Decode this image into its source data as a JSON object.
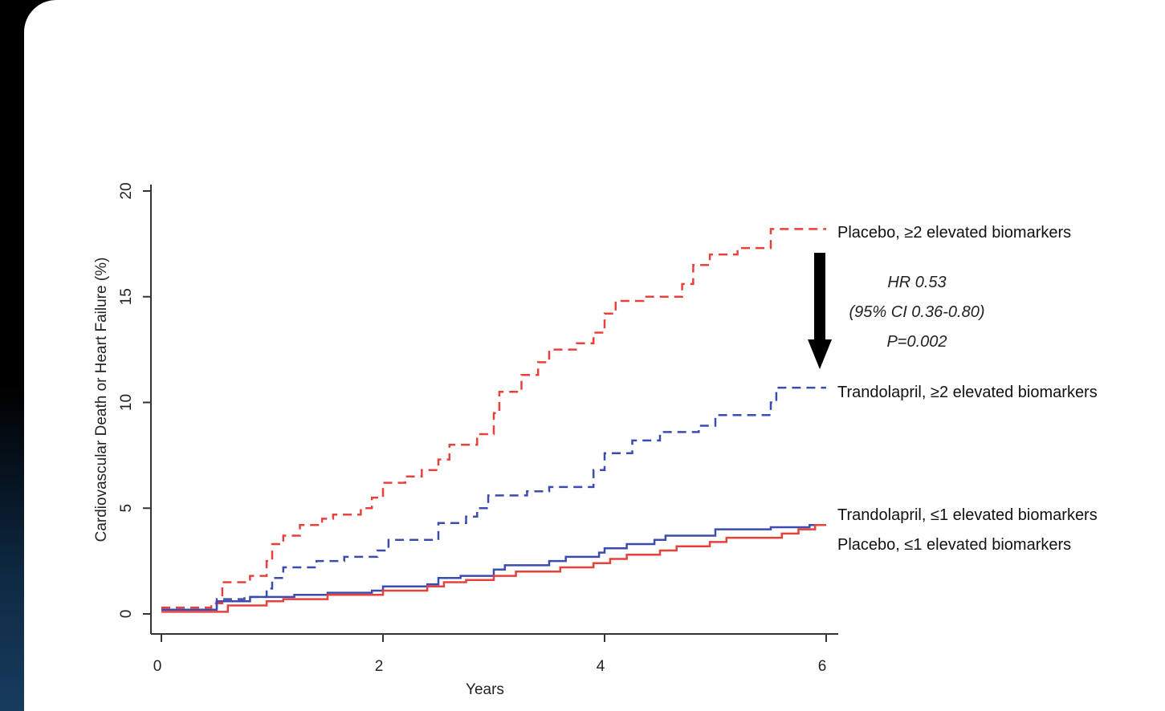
{
  "chart_data": {
    "type": "line",
    "xlabel": "Years",
    "ylabel": "Cardiovascular Death or Heart Failure (%)",
    "xlim": [
      0,
      6
    ],
    "ylim": [
      0,
      20
    ],
    "x_ticks": [
      "0",
      "2",
      "4",
      "6"
    ],
    "y_ticks": [
      "0",
      "5",
      "10",
      "15",
      "20"
    ],
    "grid": false,
    "legend_placement": "right, end of lines",
    "series": [
      {
        "name": "Placebo, ≥2 elevated biomarkers",
        "color": "#e8413c",
        "dash": "dashed",
        "points": [
          [
            0,
            0.3
          ],
          [
            0.45,
            0.3
          ],
          [
            0.45,
            0.5
          ],
          [
            0.55,
            0.5
          ],
          [
            0.55,
            1.5
          ],
          [
            0.8,
            1.5
          ],
          [
            0.8,
            1.8
          ],
          [
            0.95,
            1.8
          ],
          [
            0.95,
            2.5
          ],
          [
            1.0,
            2.5
          ],
          [
            1.0,
            3.3
          ],
          [
            1.1,
            3.3
          ],
          [
            1.1,
            3.7
          ],
          [
            1.25,
            3.7
          ],
          [
            1.25,
            4.2
          ],
          [
            1.45,
            4.2
          ],
          [
            1.45,
            4.5
          ],
          [
            1.55,
            4.5
          ],
          [
            1.55,
            4.7
          ],
          [
            1.8,
            4.7
          ],
          [
            1.8,
            5.0
          ],
          [
            1.9,
            5.0
          ],
          [
            1.9,
            5.5
          ],
          [
            2.0,
            5.5
          ],
          [
            2.0,
            6.2
          ],
          [
            2.2,
            6.2
          ],
          [
            2.2,
            6.5
          ],
          [
            2.35,
            6.5
          ],
          [
            2.35,
            6.8
          ],
          [
            2.5,
            6.8
          ],
          [
            2.5,
            7.3
          ],
          [
            2.6,
            7.3
          ],
          [
            2.6,
            8.0
          ],
          [
            2.85,
            8.0
          ],
          [
            2.85,
            8.5
          ],
          [
            3.0,
            8.5
          ],
          [
            3.0,
            9.5
          ],
          [
            3.05,
            9.5
          ],
          [
            3.05,
            10.5
          ],
          [
            3.25,
            10.5
          ],
          [
            3.25,
            11.3
          ],
          [
            3.4,
            11.3
          ],
          [
            3.4,
            11.9
          ],
          [
            3.5,
            11.9
          ],
          [
            3.5,
            12.5
          ],
          [
            3.75,
            12.5
          ],
          [
            3.75,
            12.8
          ],
          [
            3.9,
            12.8
          ],
          [
            3.9,
            13.3
          ],
          [
            4.0,
            13.3
          ],
          [
            4.0,
            14.2
          ],
          [
            4.1,
            14.2
          ],
          [
            4.1,
            14.8
          ],
          [
            4.35,
            14.8
          ],
          [
            4.35,
            15.0
          ],
          [
            4.7,
            15.0
          ],
          [
            4.7,
            15.6
          ],
          [
            4.8,
            15.6
          ],
          [
            4.8,
            16.5
          ],
          [
            4.95,
            16.5
          ],
          [
            4.95,
            17.0
          ],
          [
            5.2,
            17.0
          ],
          [
            5.2,
            17.3
          ],
          [
            5.5,
            17.3
          ],
          [
            5.5,
            18.2
          ],
          [
            6.0,
            18.2
          ]
        ]
      },
      {
        "name": "Trandolapril, ≥2 elevated biomarkers",
        "color": "#3c4bb0",
        "dash": "dashed",
        "points": [
          [
            0,
            0.2
          ],
          [
            0.5,
            0.2
          ],
          [
            0.5,
            0.7
          ],
          [
            0.75,
            0.7
          ],
          [
            0.75,
            0.8
          ],
          [
            0.95,
            0.8
          ],
          [
            0.95,
            1.2
          ],
          [
            1.0,
            1.2
          ],
          [
            1.0,
            1.7
          ],
          [
            1.1,
            1.7
          ],
          [
            1.1,
            2.2
          ],
          [
            1.4,
            2.2
          ],
          [
            1.4,
            2.5
          ],
          [
            1.65,
            2.5
          ],
          [
            1.65,
            2.7
          ],
          [
            1.95,
            2.7
          ],
          [
            1.95,
            3.0
          ],
          [
            2.05,
            3.0
          ],
          [
            2.05,
            3.5
          ],
          [
            2.5,
            3.5
          ],
          [
            2.5,
            4.3
          ],
          [
            2.75,
            4.3
          ],
          [
            2.75,
            4.6
          ],
          [
            2.85,
            4.6
          ],
          [
            2.85,
            5.0
          ],
          [
            2.95,
            5.0
          ],
          [
            2.95,
            5.6
          ],
          [
            3.3,
            5.6
          ],
          [
            3.3,
            5.8
          ],
          [
            3.5,
            5.8
          ],
          [
            3.5,
            6.0
          ],
          [
            3.9,
            6.0
          ],
          [
            3.9,
            6.8
          ],
          [
            4.0,
            6.8
          ],
          [
            4.0,
            7.6
          ],
          [
            4.25,
            7.6
          ],
          [
            4.25,
            8.2
          ],
          [
            4.5,
            8.2
          ],
          [
            4.5,
            8.6
          ],
          [
            4.85,
            8.6
          ],
          [
            4.85,
            8.9
          ],
          [
            5.0,
            8.9
          ],
          [
            5.0,
            9.4
          ],
          [
            5.5,
            9.4
          ],
          [
            5.5,
            10.0
          ],
          [
            5.55,
            10.0
          ],
          [
            5.55,
            10.7
          ],
          [
            6.0,
            10.7
          ]
        ]
      },
      {
        "name": "Trandolapril, ≤1 elevated biomarkers",
        "color": "#3c4bb0",
        "dash": "solid",
        "points": [
          [
            0,
            0.2
          ],
          [
            0.5,
            0.2
          ],
          [
            0.5,
            0.6
          ],
          [
            0.8,
            0.6
          ],
          [
            0.8,
            0.8
          ],
          [
            1.2,
            0.8
          ],
          [
            1.2,
            0.9
          ],
          [
            1.5,
            0.9
          ],
          [
            1.5,
            1.0
          ],
          [
            1.9,
            1.0
          ],
          [
            1.9,
            1.1
          ],
          [
            2.0,
            1.1
          ],
          [
            2.0,
            1.3
          ],
          [
            2.4,
            1.3
          ],
          [
            2.4,
            1.4
          ],
          [
            2.5,
            1.4
          ],
          [
            2.5,
            1.7
          ],
          [
            2.7,
            1.7
          ],
          [
            2.7,
            1.8
          ],
          [
            3.0,
            1.8
          ],
          [
            3.0,
            2.1
          ],
          [
            3.1,
            2.1
          ],
          [
            3.1,
            2.3
          ],
          [
            3.5,
            2.3
          ],
          [
            3.5,
            2.5
          ],
          [
            3.65,
            2.5
          ],
          [
            3.65,
            2.7
          ],
          [
            3.95,
            2.7
          ],
          [
            3.95,
            2.9
          ],
          [
            4.0,
            2.9
          ],
          [
            4.0,
            3.1
          ],
          [
            4.2,
            3.1
          ],
          [
            4.2,
            3.3
          ],
          [
            4.45,
            3.3
          ],
          [
            4.45,
            3.5
          ],
          [
            4.55,
            3.5
          ],
          [
            4.55,
            3.7
          ],
          [
            5.0,
            3.7
          ],
          [
            5.0,
            4.0
          ],
          [
            5.5,
            4.0
          ],
          [
            5.5,
            4.1
          ],
          [
            5.85,
            4.1
          ],
          [
            5.85,
            4.2
          ],
          [
            6.0,
            4.2
          ]
        ]
      },
      {
        "name": "Placebo, ≤1 elevated biomarkers",
        "color": "#e8413c",
        "dash": "solid",
        "points": [
          [
            0,
            0.1
          ],
          [
            0.6,
            0.1
          ],
          [
            0.6,
            0.4
          ],
          [
            0.95,
            0.4
          ],
          [
            0.95,
            0.6
          ],
          [
            1.1,
            0.6
          ],
          [
            1.1,
            0.7
          ],
          [
            1.5,
            0.7
          ],
          [
            1.5,
            0.9
          ],
          [
            2.0,
            0.9
          ],
          [
            2.0,
            1.1
          ],
          [
            2.4,
            1.1
          ],
          [
            2.4,
            1.3
          ],
          [
            2.55,
            1.3
          ],
          [
            2.55,
            1.5
          ],
          [
            2.75,
            1.5
          ],
          [
            2.75,
            1.6
          ],
          [
            3.0,
            1.6
          ],
          [
            3.0,
            1.8
          ],
          [
            3.2,
            1.8
          ],
          [
            3.2,
            2.0
          ],
          [
            3.6,
            2.0
          ],
          [
            3.6,
            2.2
          ],
          [
            3.9,
            2.2
          ],
          [
            3.9,
            2.4
          ],
          [
            4.05,
            2.4
          ],
          [
            4.05,
            2.6
          ],
          [
            4.2,
            2.6
          ],
          [
            4.2,
            2.8
          ],
          [
            4.5,
            2.8
          ],
          [
            4.5,
            3.0
          ],
          [
            4.65,
            3.0
          ],
          [
            4.65,
            3.2
          ],
          [
            4.95,
            3.2
          ],
          [
            4.95,
            3.4
          ],
          [
            5.1,
            3.4
          ],
          [
            5.1,
            3.6
          ],
          [
            5.6,
            3.6
          ],
          [
            5.6,
            3.8
          ],
          [
            5.75,
            3.8
          ],
          [
            5.75,
            4.0
          ],
          [
            5.9,
            4.0
          ],
          [
            5.9,
            4.2
          ],
          [
            6.0,
            4.2
          ]
        ]
      }
    ],
    "annotation": {
      "lines": [
        "HR 0.53",
        "(95% CI 0.36-0.80)",
        "P=0.002"
      ]
    }
  }
}
